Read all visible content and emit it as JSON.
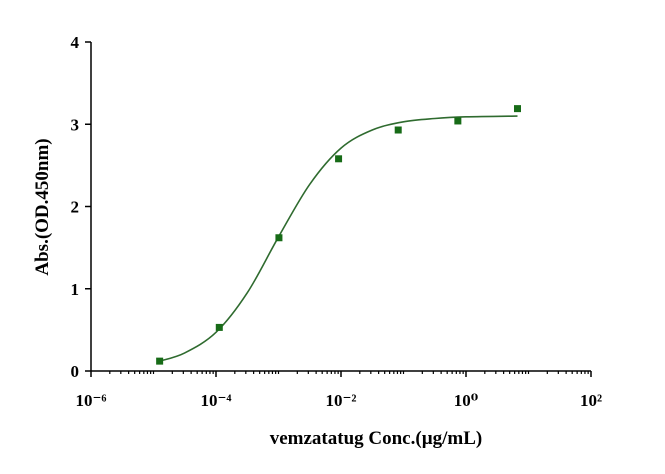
{
  "chart_data": {
    "type": "scatter",
    "x_label": "vemzatatug Conc.(µg/mL)",
    "y_label": "Abs.(OD.450nm)",
    "x_scale": "log",
    "xlim": [
      1e-06,
      100
    ],
    "ylim": [
      0,
      4
    ],
    "xticks": [
      {
        "value": 1e-06,
        "label": "10⁻⁶"
      },
      {
        "value": 0.0001,
        "label": "10⁻⁴"
      },
      {
        "value": 0.01,
        "label": "10⁻²"
      },
      {
        "value": 1,
        "label": "10⁰"
      },
      {
        "value": 100,
        "label": "10²"
      }
    ],
    "xminorticks": [
      2e-06,
      3e-06,
      4e-06,
      5e-06,
      6e-06,
      7e-06,
      8e-06,
      9e-06,
      1e-05,
      2e-05,
      3e-05,
      4e-05,
      5e-05,
      6e-05,
      7e-05,
      8e-05,
      9e-05,
      0.0002,
      0.0003,
      0.0004,
      0.0005,
      0.0006,
      0.0007,
      0.0008,
      0.0009,
      0.001,
      0.002,
      0.003,
      0.004,
      0.005,
      0.006,
      0.007,
      0.008,
      0.009,
      0.02,
      0.03,
      0.04,
      0.05,
      0.06,
      0.07,
      0.08,
      0.09,
      0.1,
      0.2,
      0.3,
      0.4,
      0.5,
      0.6,
      0.7,
      0.8,
      0.9,
      2,
      3,
      4,
      5,
      6,
      7,
      8,
      9,
      10,
      20,
      30,
      40,
      50,
      60,
      70,
      80,
      90
    ],
    "yticks": [
      0,
      1,
      2,
      3,
      4
    ],
    "x": [
      1.254e-05,
      0.0001129,
      0.001016,
      0.009145,
      0.0823,
      0.7407,
      6.667
    ],
    "values": [
      0.12,
      0.53,
      1.62,
      2.58,
      2.93,
      3.04,
      3.19
    ],
    "color": "#176b17",
    "curve": {
      "color": "#2f6b2f",
      "x": [
        1.254e-05,
        3.162e-05,
        0.0001,
        0.0003162,
        0.001,
        0.003162,
        0.01,
        0.03162,
        0.1,
        0.3162,
        1,
        6.667
      ],
      "values": [
        0.12,
        0.22,
        0.47,
        0.95,
        1.63,
        2.27,
        2.71,
        2.93,
        3.03,
        3.07,
        3.09,
        3.1
      ]
    }
  }
}
